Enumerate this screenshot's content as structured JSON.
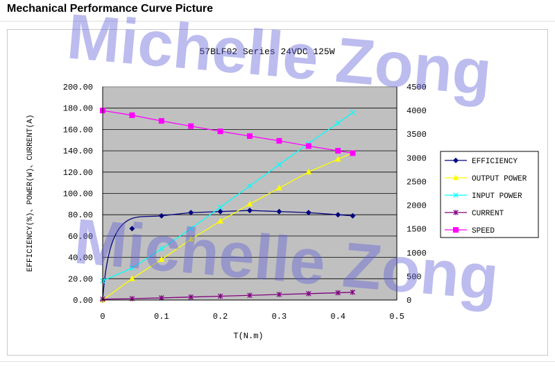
{
  "page": {
    "title": "Mechanical Performance Curve Picture",
    "watermark": "Michelle Zong"
  },
  "chart_data": {
    "type": "line",
    "title": "57BLF02 Series 24VDC 125W",
    "xlabel": "T(N.m)",
    "ylabel": "EFFICIENCY(%)、POWER(W)、CURRENT(A)",
    "xlim": [
      0,
      0.5
    ],
    "ylim": [
      0,
      200
    ],
    "y2lim": [
      0,
      4500
    ],
    "x_ticks": [
      "0",
      "0.1",
      "0.2",
      "0.3",
      "0.4",
      "0.5"
    ],
    "y_ticks": [
      "0.00",
      "20.00",
      "40.00",
      "60.00",
      "80.00",
      "100.00",
      "120.00",
      "140.00",
      "160.00",
      "180.00",
      "200.00"
    ],
    "y2_ticks": [
      "0",
      "500",
      "1000",
      "1500",
      "2000",
      "2500",
      "3000",
      "3500",
      "4000",
      "4500"
    ],
    "grid": true,
    "legend_position": "right",
    "plot_background": "#c0c0c0",
    "series": [
      {
        "name": "EFFICIENCY",
        "axis": "left",
        "marker": "diamond",
        "color": "#000080",
        "x": [
          0,
          0.05,
          0.1,
          0.15,
          0.2,
          0.25,
          0.3,
          0.35,
          0.4,
          0.425
        ],
        "values": [
          0,
          67,
          79,
          82,
          83,
          84,
          83,
          82,
          80,
          79
        ]
      },
      {
        "name": "OUTPUT POWER",
        "axis": "left",
        "marker": "triangle",
        "color": "#ffff00",
        "x": [
          0,
          0.05,
          0.1,
          0.15,
          0.2,
          0.25,
          0.3,
          0.35,
          0.4,
          0.425
        ],
        "values": [
          0,
          20,
          38,
          57,
          74,
          90,
          105,
          120,
          132,
          138
        ]
      },
      {
        "name": "INPUT POWER",
        "axis": "left",
        "marker": "x",
        "color": "#00ffff",
        "x": [
          0,
          0.05,
          0.1,
          0.15,
          0.2,
          0.25,
          0.3,
          0.35,
          0.4,
          0.425
        ],
        "values": [
          18,
          30,
          48,
          67,
          87,
          107,
          127,
          147,
          166,
          176
        ]
      },
      {
        "name": "CURRENT",
        "axis": "left",
        "marker": "star",
        "color": "#800080",
        "x": [
          0,
          0.05,
          0.1,
          0.15,
          0.2,
          0.25,
          0.3,
          0.35,
          0.4,
          0.425
        ],
        "values": [
          0.8,
          1.3,
          2.0,
          2.8,
          3.6,
          4.4,
          5.2,
          6.0,
          6.8,
          7.3
        ]
      },
      {
        "name": "SPEED",
        "axis": "right",
        "marker": "square",
        "color": "#ff00ff",
        "x": [
          0,
          0.05,
          0.1,
          0.15,
          0.2,
          0.25,
          0.3,
          0.35,
          0.4,
          0.425
        ],
        "values": [
          4000,
          3900,
          3780,
          3670,
          3560,
          3460,
          3360,
          3250,
          3150,
          3100
        ]
      }
    ]
  }
}
